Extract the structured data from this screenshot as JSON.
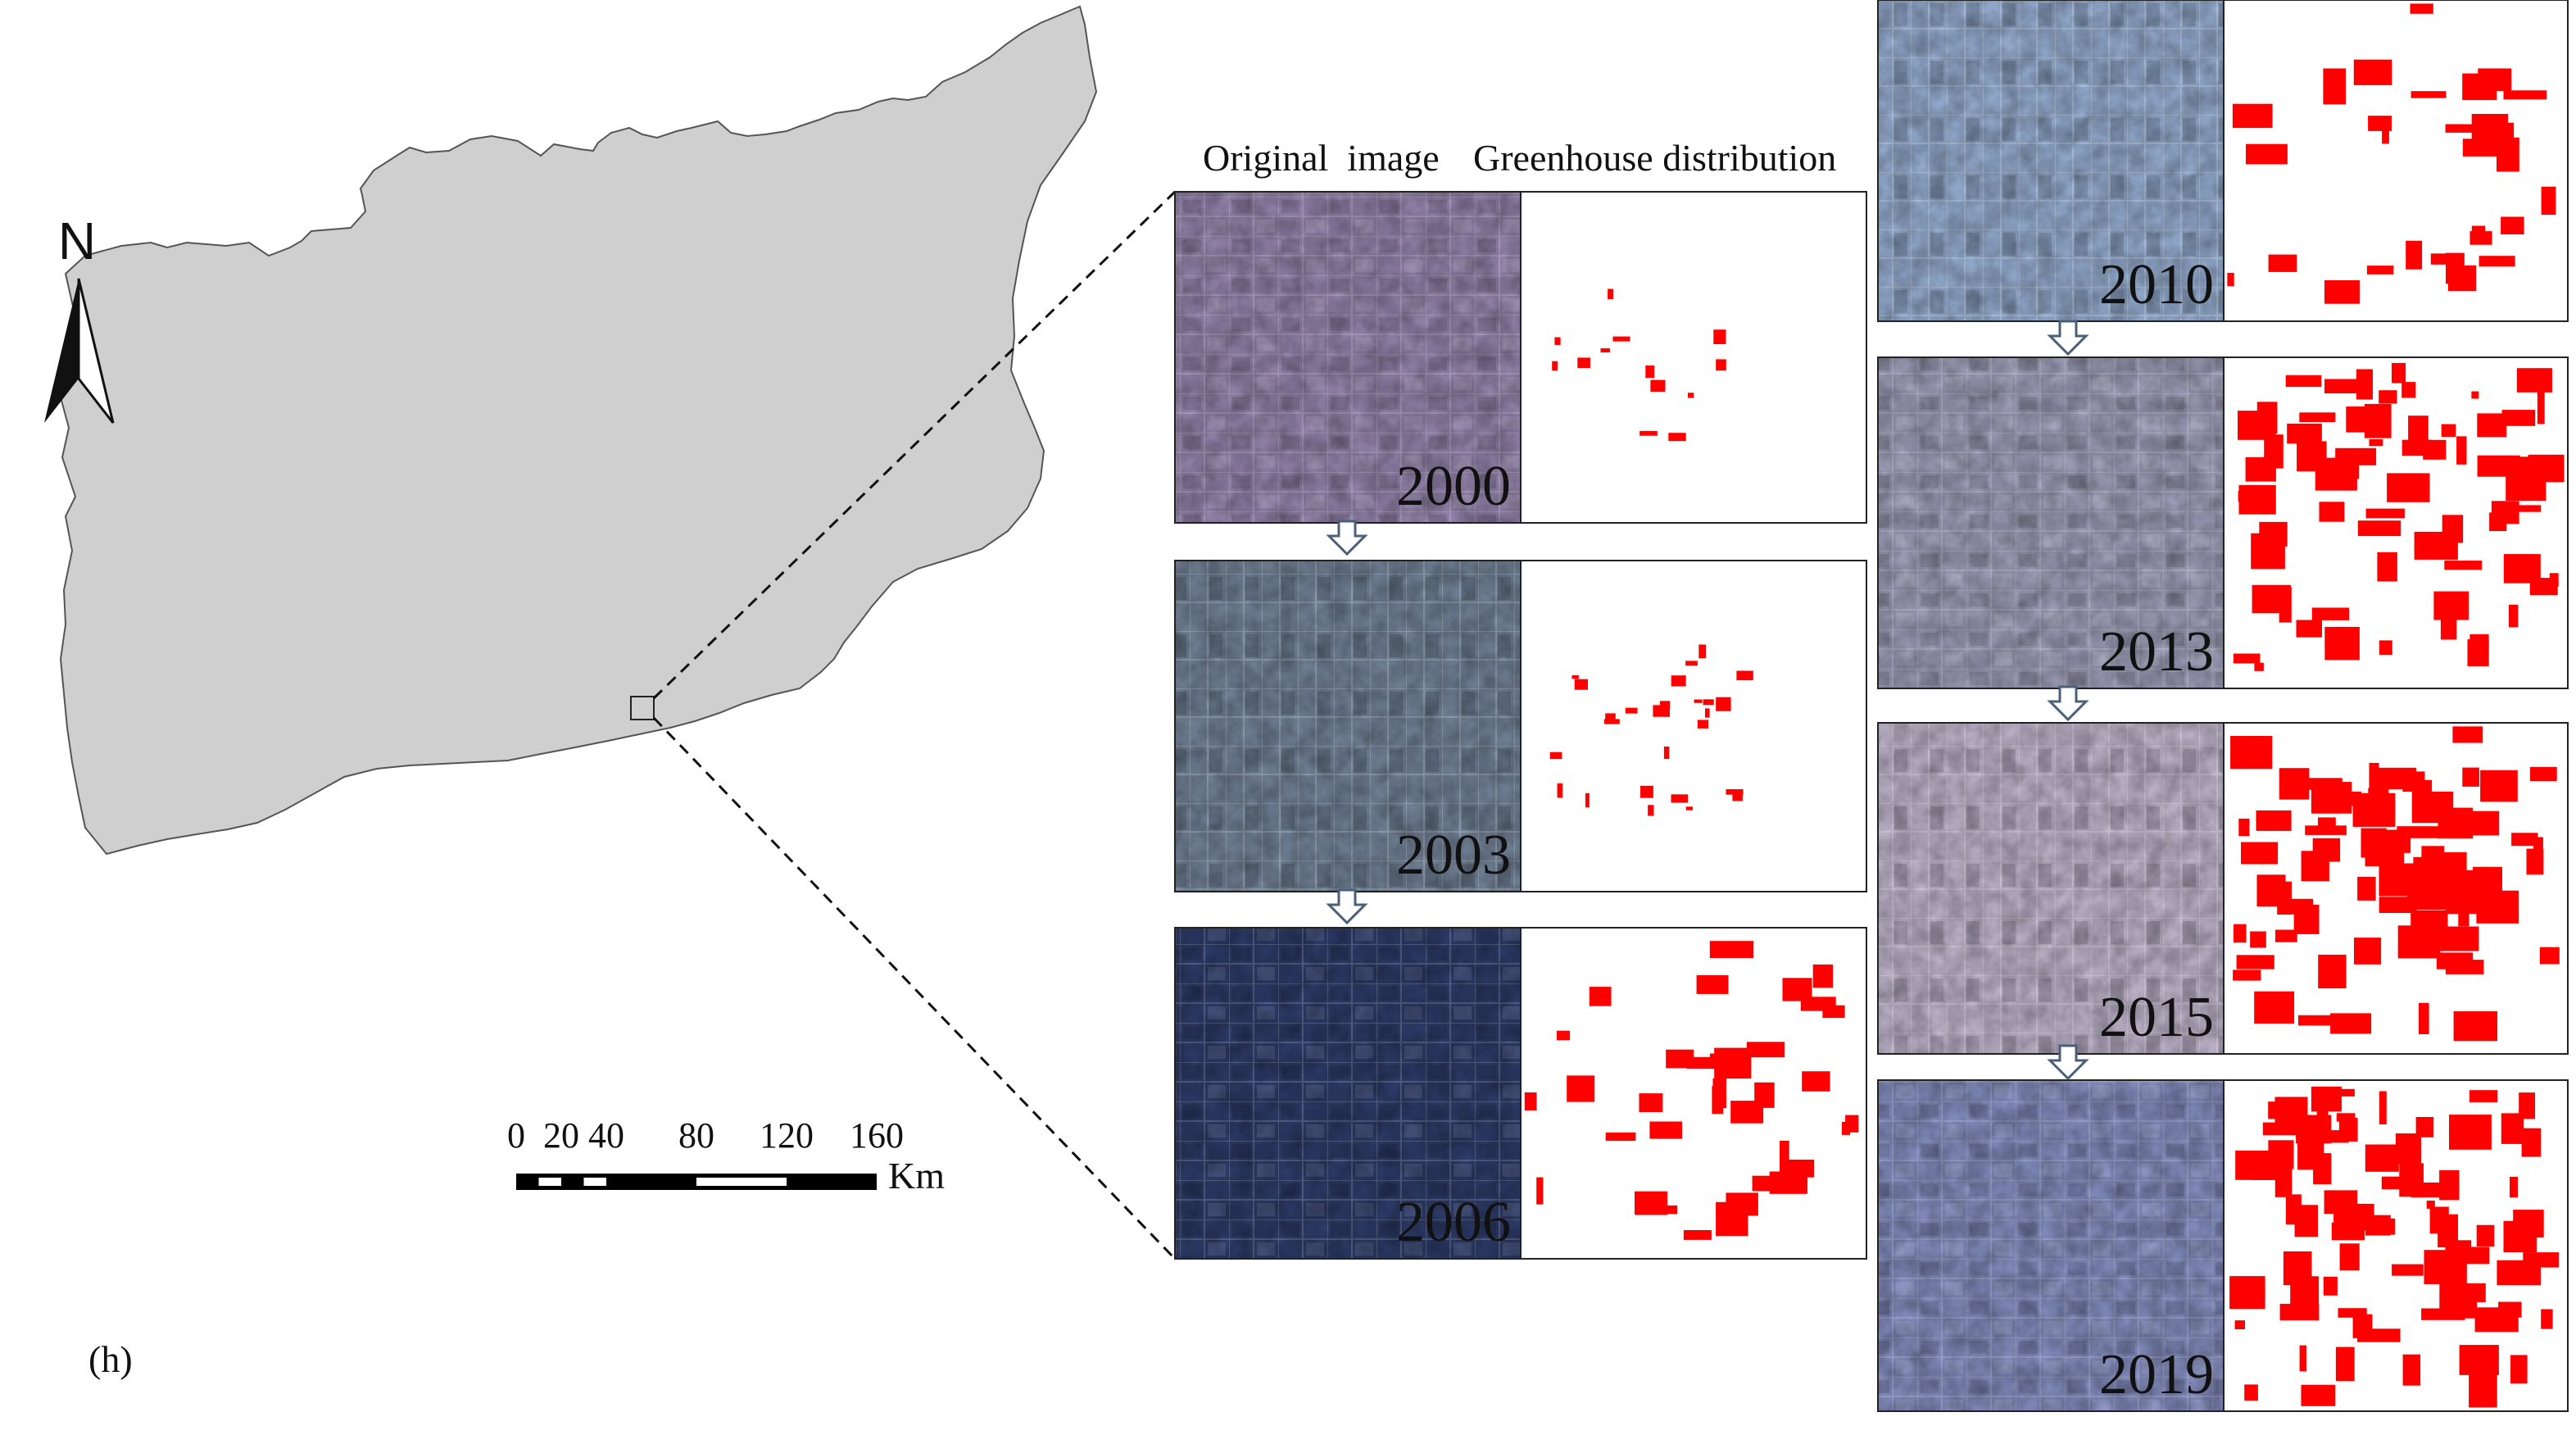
{
  "figure_label": "(h)",
  "column_headers": {
    "original": "Original  image",
    "distribution": "Greenhouse distribution"
  },
  "north_arrow": {
    "letter": "N",
    "icon": "north-arrow-icon"
  },
  "scale_bar": {
    "ticks": [
      "0",
      "20",
      "40",
      "80",
      "120",
      "160"
    ],
    "tick_values": [
      0,
      20,
      40,
      80,
      120,
      160
    ],
    "unit": "Km"
  },
  "region": {
    "fill": "#cfcfcf",
    "stroke": "#555555"
  },
  "greenhouse_color": "#ff0000",
  "years": [
    {
      "year": "2000",
      "coverage": 0.01
    },
    {
      "year": "2003",
      "coverage": 0.02
    },
    {
      "year": "2006",
      "coverage": 0.15
    },
    {
      "year": "2010",
      "coverage": 0.14
    },
    {
      "year": "2013",
      "coverage": 0.34
    },
    {
      "year": "2015",
      "coverage": 0.42
    },
    {
      "year": "2019",
      "coverage": 0.4
    }
  ],
  "image_tints": {
    "2000": "#8f7fa6",
    "2003": "#6e7e92",
    "2006": "#2c3a66",
    "2010": "#8fa6c8",
    "2013": "#9a98b2",
    "2015": "#b8aec4",
    "2019": "#7f88b8"
  }
}
